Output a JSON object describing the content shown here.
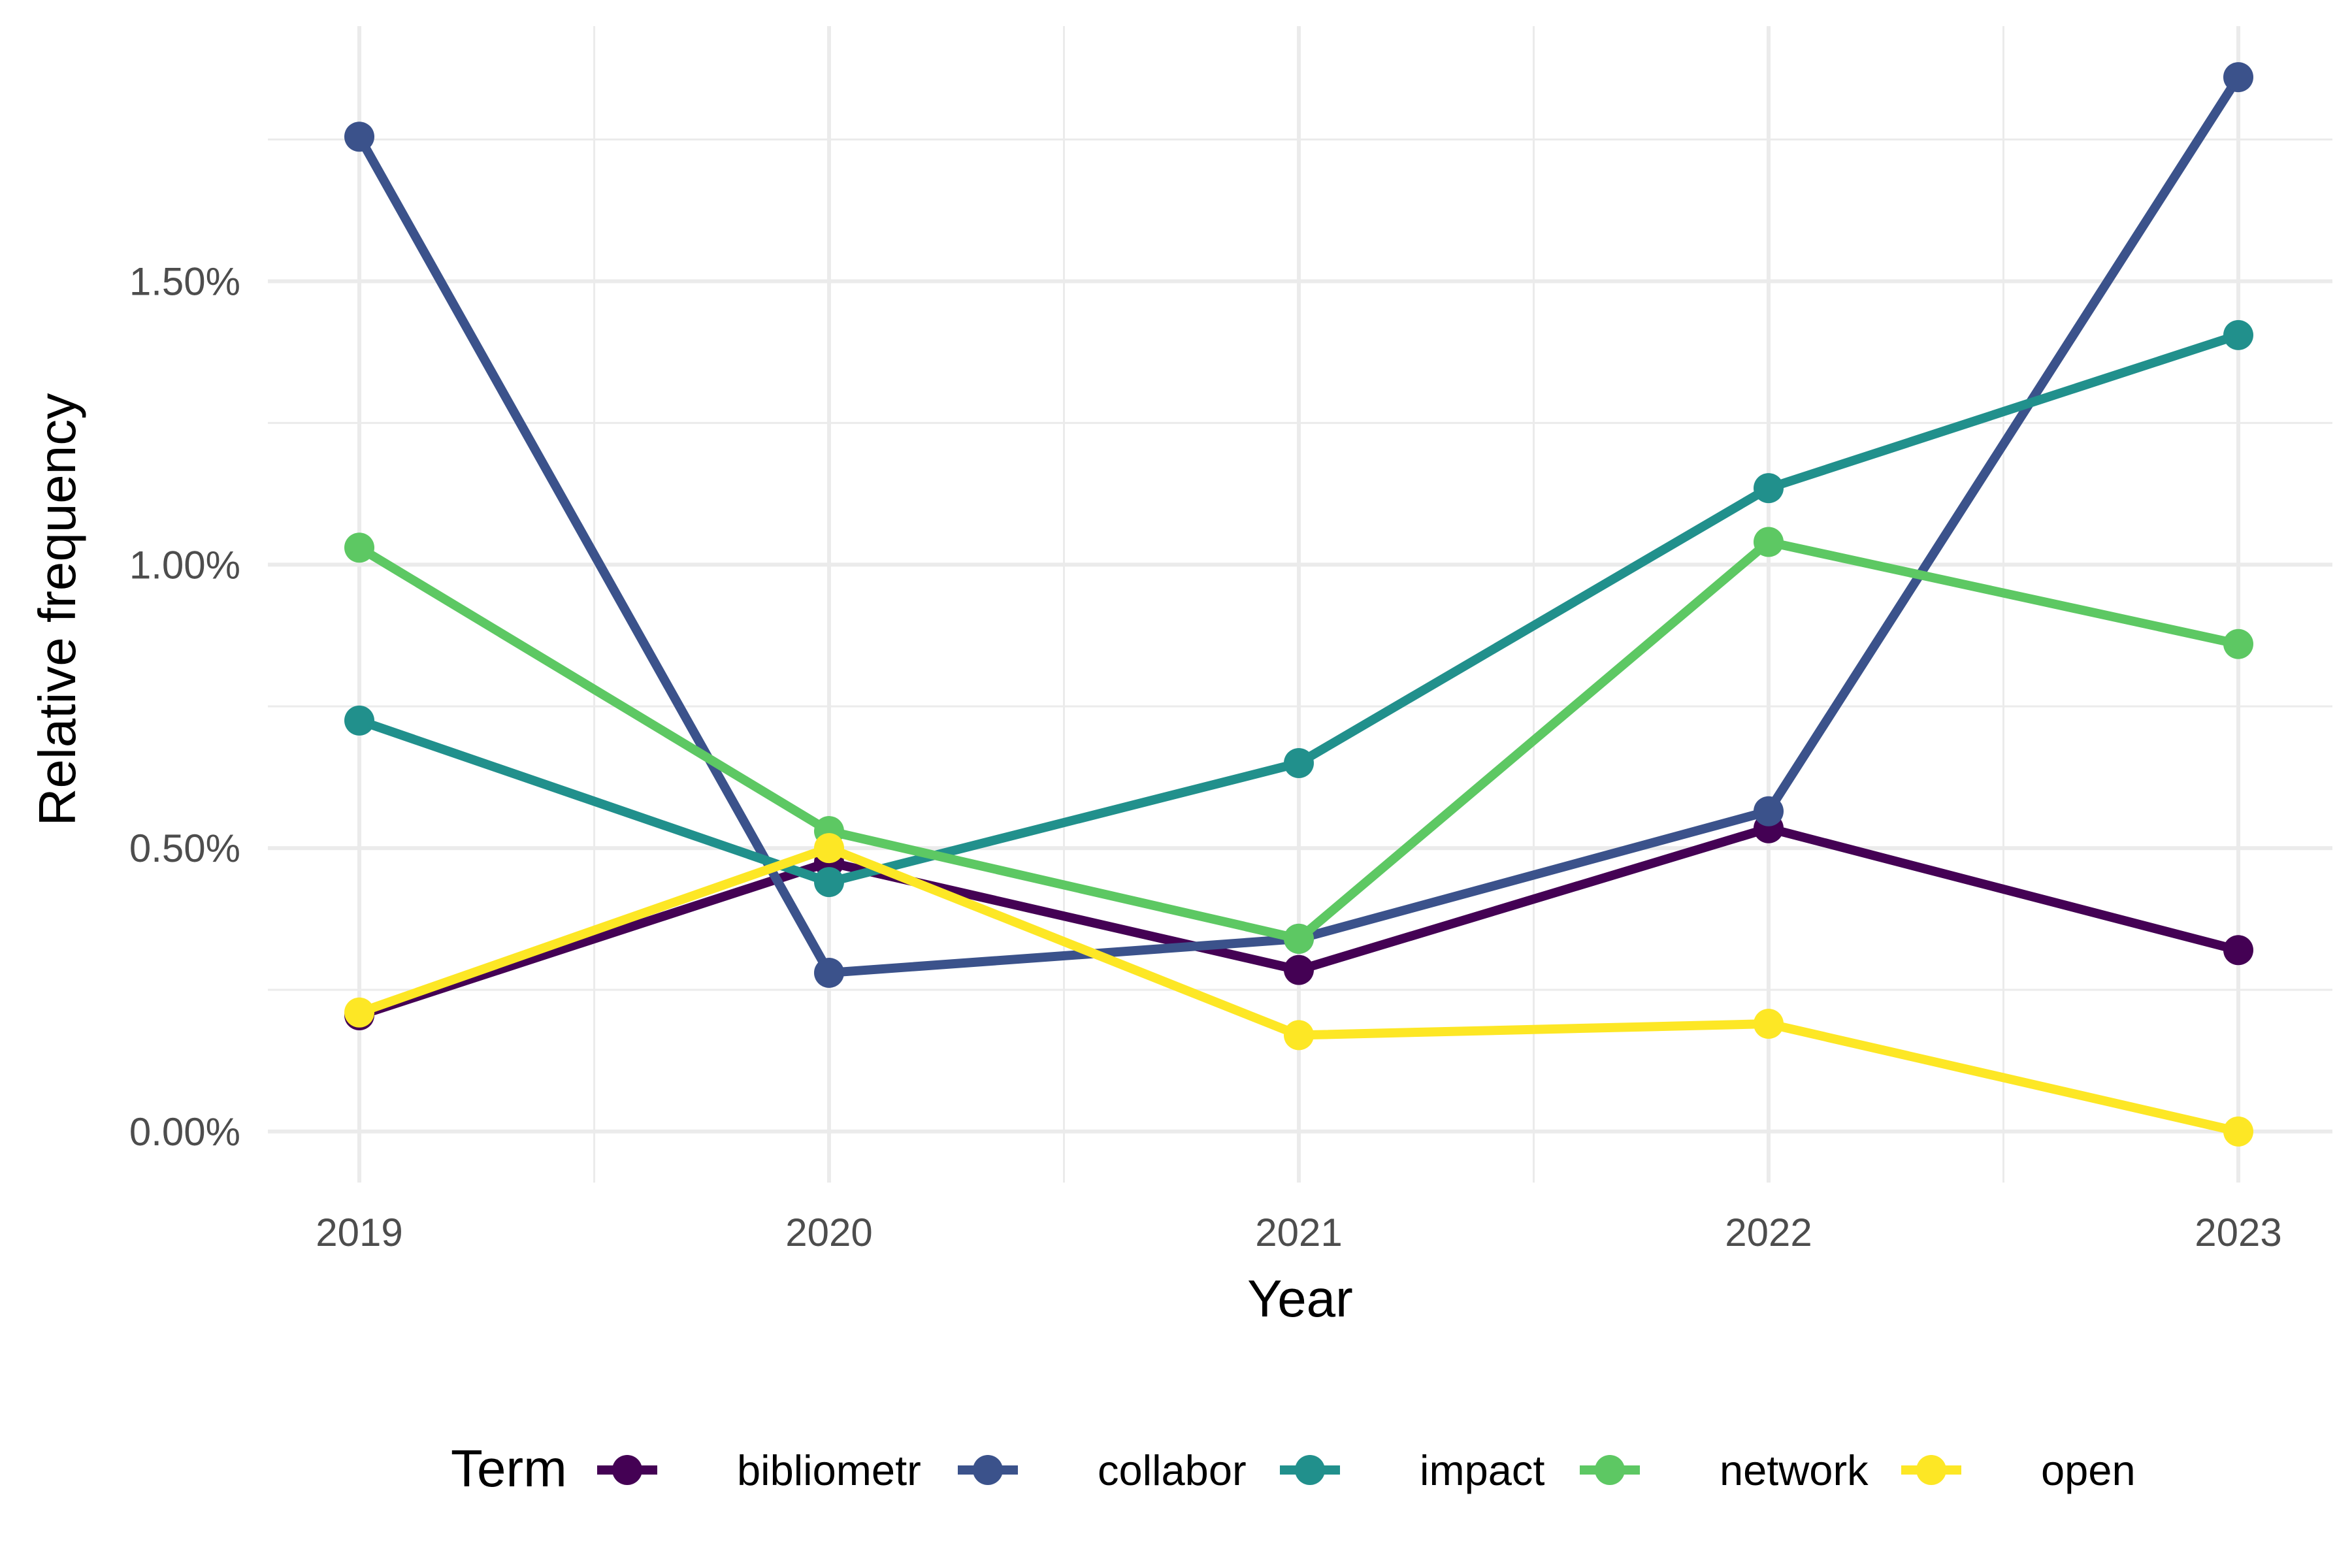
{
  "chart_data": {
    "type": "line",
    "title": "",
    "xlabel": "Year",
    "ylabel": "Relative frequency",
    "x": [
      2019,
      2020,
      2021,
      2022,
      2023
    ],
    "x_ticks": [
      "2019",
      "2020",
      "2021",
      "2022",
      "2023"
    ],
    "y_ticks": [
      "0.00%",
      "0.50%",
      "1.00%",
      "1.50%"
    ],
    "y_tick_values": [
      0.0,
      0.5,
      1.0,
      1.5
    ],
    "ylim": [
      -0.09,
      1.95
    ],
    "y_unit": "%",
    "grid": true,
    "legend_title": "Term",
    "legend_position": "bottom",
    "series": [
      {
        "name": "bibliometr",
        "color": "#440154",
        "values": [
          0.205,
          0.475,
          0.285,
          0.535,
          0.32
        ]
      },
      {
        "name": "collabor",
        "color": "#3B528B",
        "values": [
          1.755,
          0.28,
          0.34,
          0.565,
          1.86
        ]
      },
      {
        "name": "impact",
        "color": "#21908C",
        "values": [
          0.725,
          0.44,
          0.65,
          1.135,
          1.405
        ]
      },
      {
        "name": "network",
        "color": "#5DC863",
        "values": [
          1.03,
          0.53,
          0.34,
          1.04,
          0.86
        ]
      },
      {
        "name": "open",
        "color": "#FDE725",
        "values": [
          0.21,
          0.5,
          0.17,
          0.19,
          0.0
        ]
      }
    ]
  }
}
